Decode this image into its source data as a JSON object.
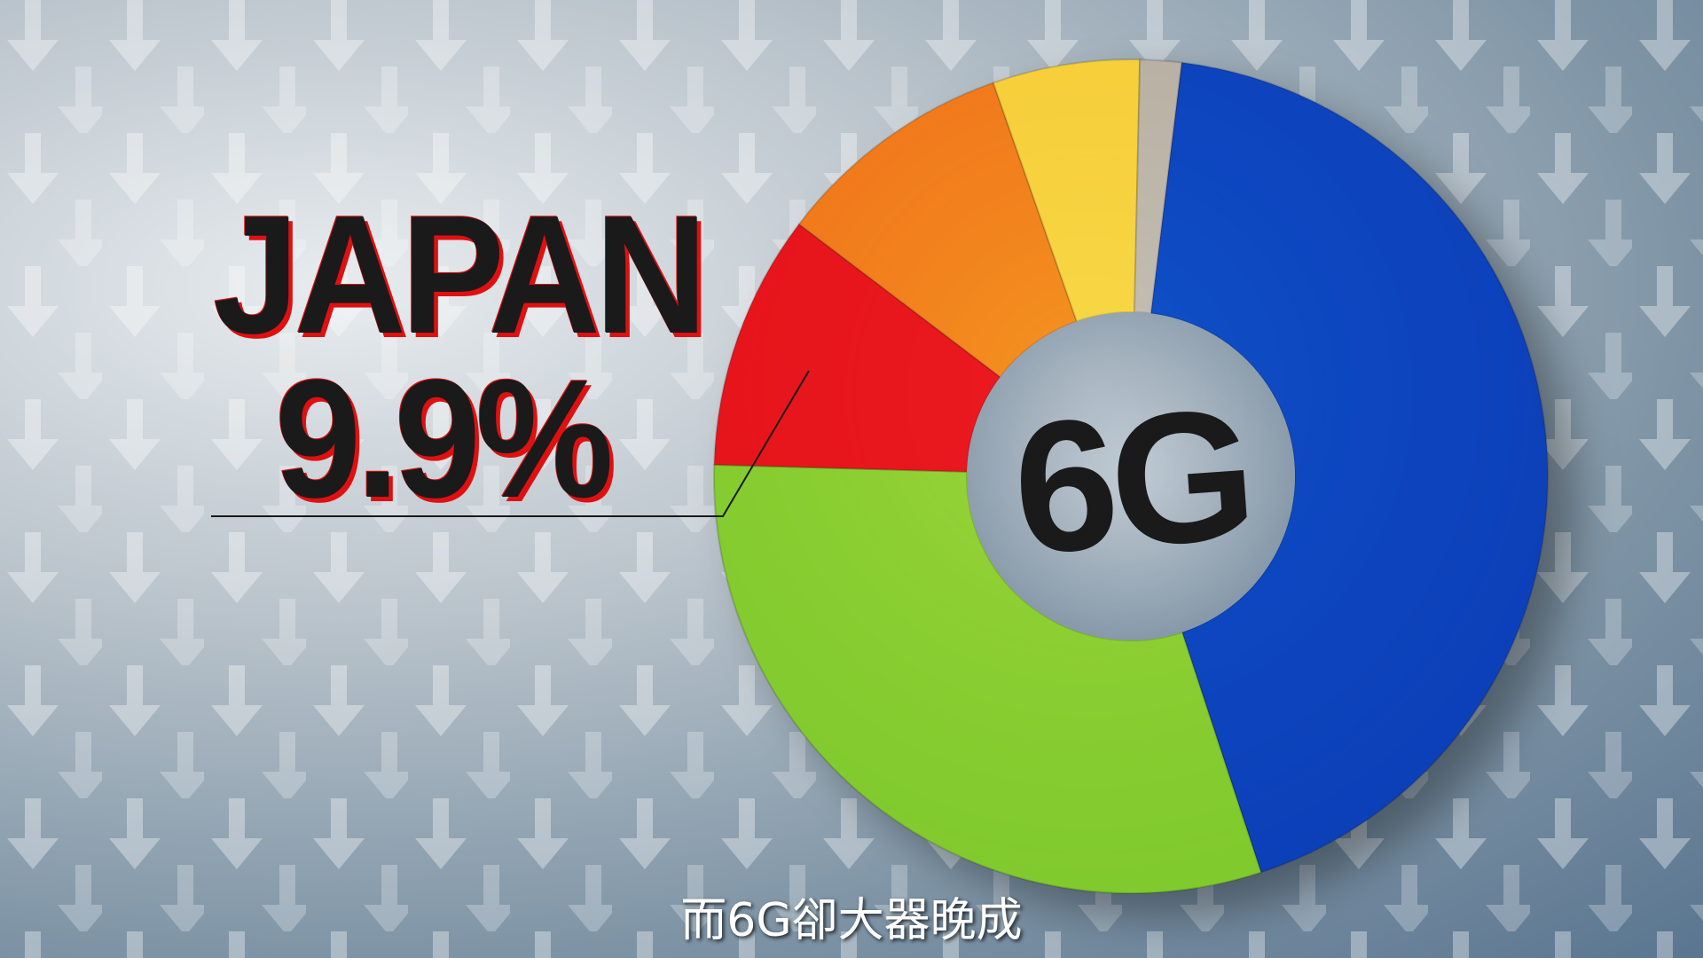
{
  "chart_data": {
    "type": "pie",
    "title": "",
    "center_label": "6G",
    "slices": [
      {
        "value": 43.0,
        "color": "#0d47c0"
      },
      {
        "value": 30.5,
        "color": "#8ccf32"
      },
      {
        "value": 9.9,
        "color": "#e8191c"
      },
      {
        "value": 9.3,
        "color": "#f27f1f"
      },
      {
        "value": 5.7,
        "color": "#f7d13c"
      },
      {
        "value": 1.6,
        "color": "#bcb5a8"
      }
    ],
    "annotations": [
      {
        "country": "JAPAN",
        "value_label": "9.9%",
        "slice_index": 2
      }
    ]
  },
  "caption": "而6G卻大器晚成"
}
